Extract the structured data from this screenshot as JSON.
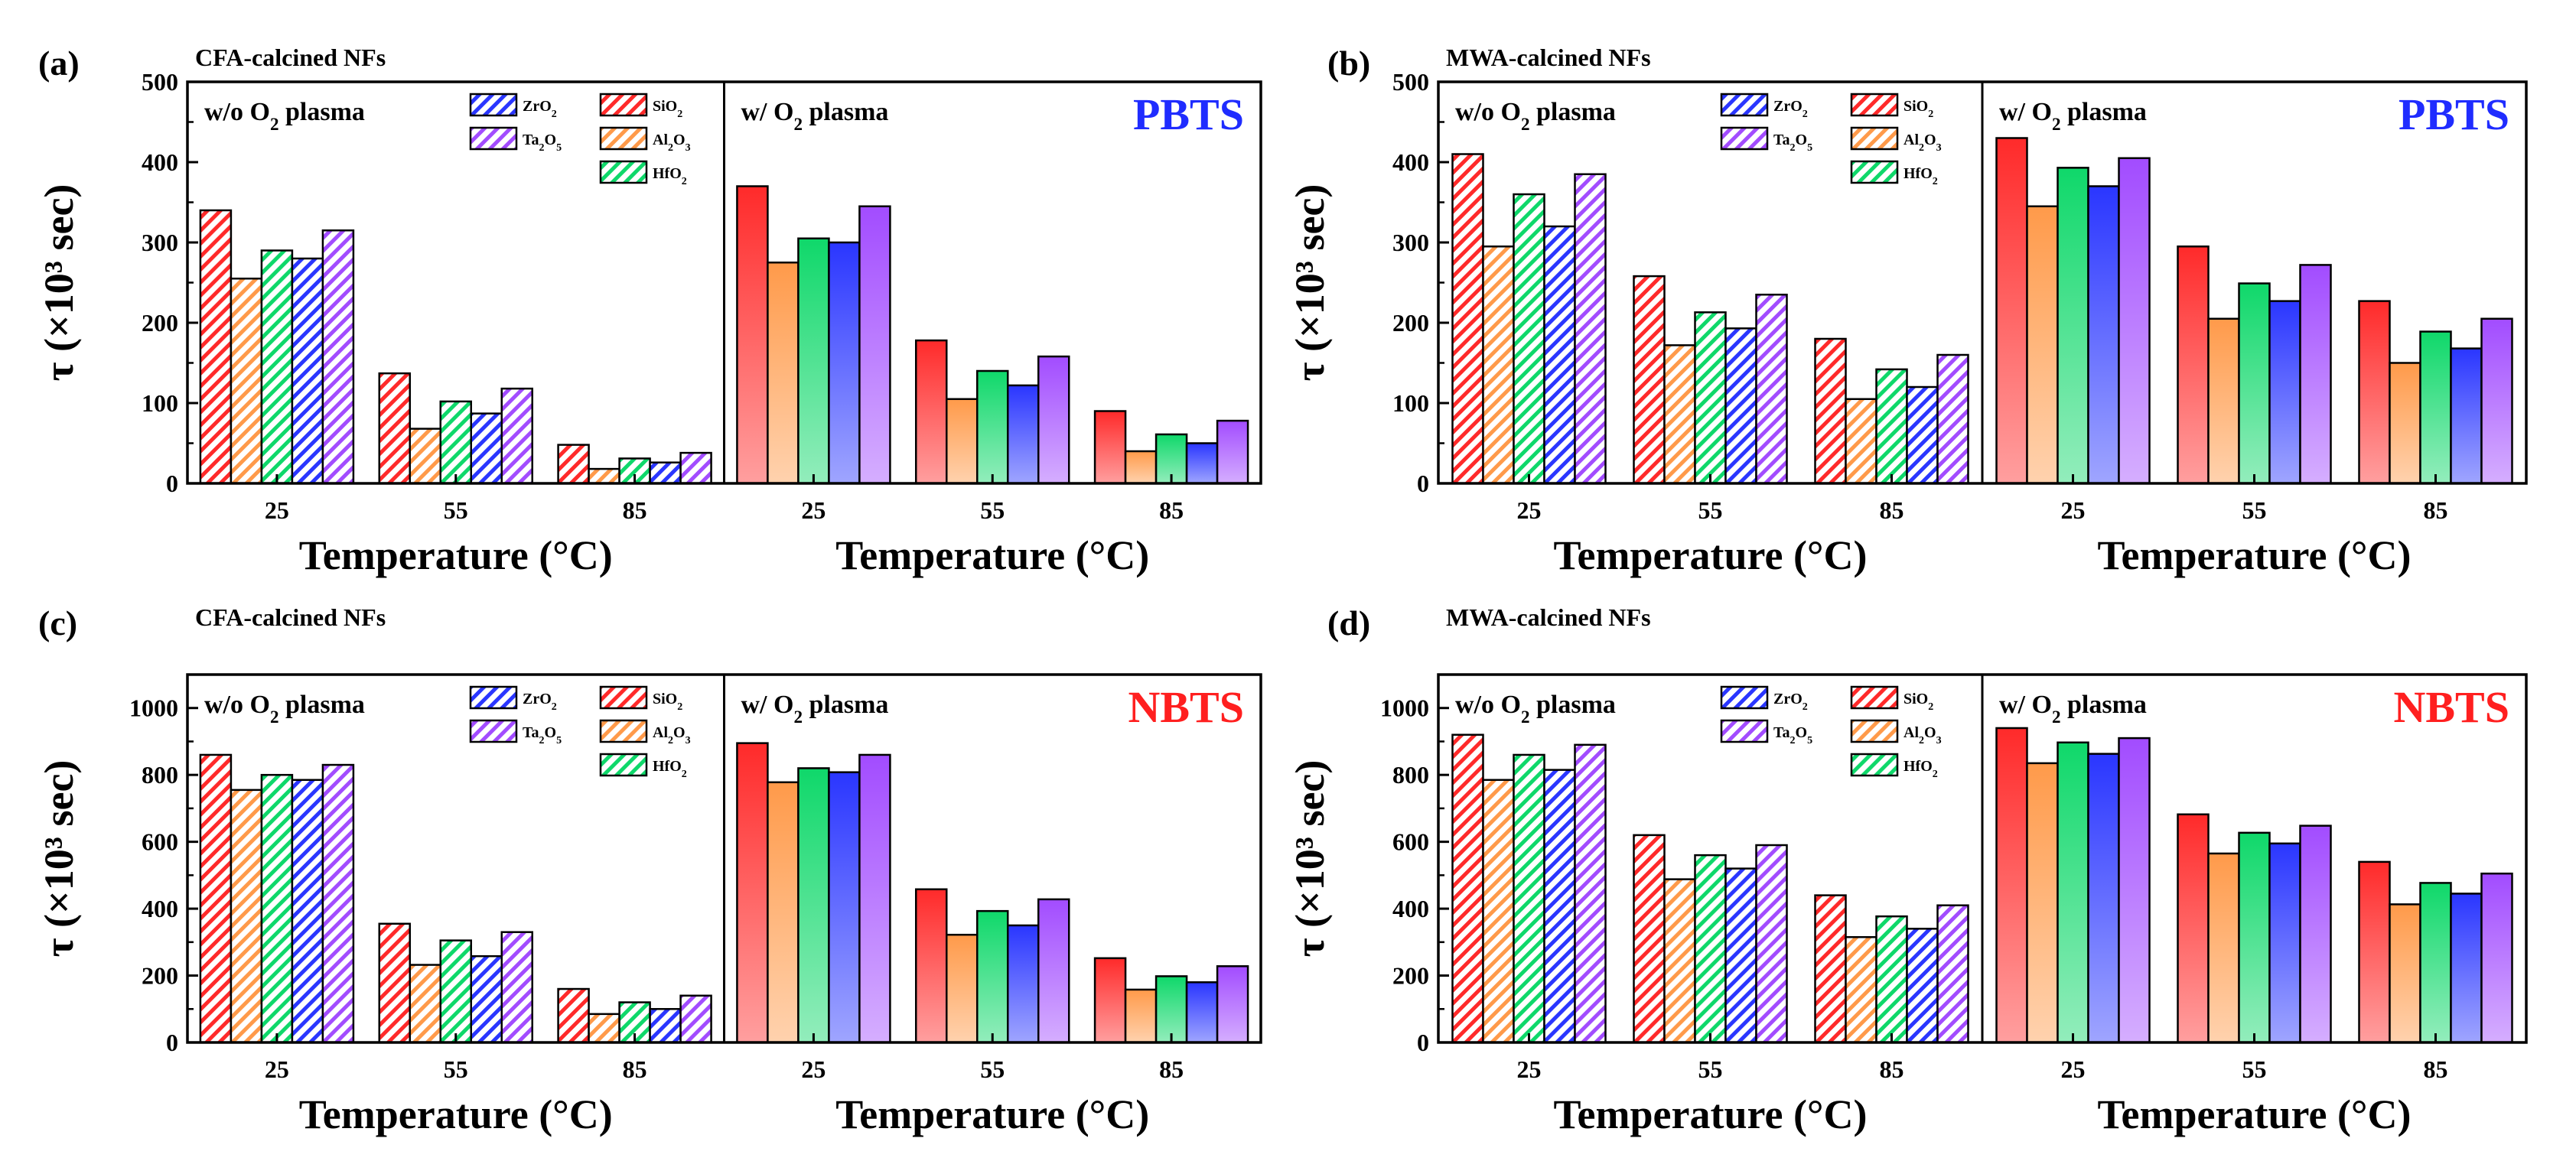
{
  "colors": {
    "SiO2": "#ff2a2a",
    "Al2O3": "#ff9a4a",
    "HfO2": "#0fd86a",
    "ZrO2": "#2a36ff",
    "Ta2O5": "#a24cff",
    "PBTS": "#1f2cff",
    "NBTS": "#ff1f1f",
    "axis": "#000000"
  },
  "legend": [
    {
      "key": "ZrO2",
      "base": "ZrO",
      "sub": "2"
    },
    {
      "key": "SiO2",
      "base": "SiO",
      "sub": "2"
    },
    {
      "key": "Ta2O5",
      "base": "Ta",
      "sub": "2",
      "base2": "O",
      "sub2": "5"
    },
    {
      "key": "Al2O3",
      "base": "Al",
      "sub": "2",
      "base2": "O",
      "sub2": "3"
    },
    {
      "key": "HfO2",
      "base": "HfO",
      "sub": "2"
    }
  ],
  "chart_data": [
    {
      "panel": "(a)",
      "type": "bar",
      "title": "CFA-calcined NFs",
      "tag": "PBTS",
      "xlabel": "Temperature (°C)",
      "ylabel": "τ (×10³ sec)",
      "ylim": [
        0,
        500
      ],
      "yticks": [
        0,
        100,
        200,
        300,
        400,
        500
      ],
      "categories": [
        "25",
        "55",
        "85"
      ],
      "groups": [
        {
          "condition": "w/o O2 plasma",
          "series": [
            {
              "name": "SiO2",
              "values": [
                340,
                137,
                48
              ]
            },
            {
              "name": "Al2O3",
              "values": [
                255,
                68,
                18
              ]
            },
            {
              "name": "HfO2",
              "values": [
                290,
                102,
                31
              ]
            },
            {
              "name": "ZrO2",
              "values": [
                280,
                87,
                26
              ]
            },
            {
              "name": "Ta2O5",
              "values": [
                315,
                118,
                38
              ]
            }
          ]
        },
        {
          "condition": "w/ O2 plasma",
          "series": [
            {
              "name": "SiO2",
              "values": [
                370,
                178,
                90
              ]
            },
            {
              "name": "Al2O3",
              "values": [
                275,
                105,
                40
              ]
            },
            {
              "name": "HfO2",
              "values": [
                305,
                140,
                61
              ]
            },
            {
              "name": "ZrO2",
              "values": [
                300,
                122,
                50
              ]
            },
            {
              "name": "Ta2O5",
              "values": [
                345,
                158,
                78
              ]
            }
          ]
        }
      ]
    },
    {
      "panel": "(b)",
      "type": "bar",
      "title": "MWA-calcined NFs",
      "tag": "PBTS",
      "xlabel": "Temperature (°C)",
      "ylabel": "τ (×10³ sec)",
      "ylim": [
        0,
        500
      ],
      "yticks": [
        0,
        100,
        200,
        300,
        400,
        500
      ],
      "categories": [
        "25",
        "55",
        "85"
      ],
      "groups": [
        {
          "condition": "w/o O2 plasma",
          "series": [
            {
              "name": "SiO2",
              "values": [
                410,
                258,
                180
              ]
            },
            {
              "name": "Al2O3",
              "values": [
                295,
                172,
                105
              ]
            },
            {
              "name": "HfO2",
              "values": [
                360,
                213,
                142
              ]
            },
            {
              "name": "ZrO2",
              "values": [
                320,
                193,
                120
              ]
            },
            {
              "name": "Ta2O5",
              "values": [
                385,
                235,
                160
              ]
            }
          ]
        },
        {
          "condition": "w/ O2 plasma",
          "series": [
            {
              "name": "SiO2",
              "values": [
                430,
                295,
                227
              ]
            },
            {
              "name": "Al2O3",
              "values": [
                345,
                205,
                150
              ]
            },
            {
              "name": "HfO2",
              "values": [
                393,
                249,
                189
              ]
            },
            {
              "name": "ZrO2",
              "values": [
                370,
                227,
                168
              ]
            },
            {
              "name": "Ta2O5",
              "values": [
                405,
                272,
                205
              ]
            }
          ]
        }
      ]
    },
    {
      "panel": "(c)",
      "type": "bar",
      "title": "CFA-calcined NFs",
      "tag": "NBTS",
      "xlabel": "Temperature (°C)",
      "ylabel": "τ (×10³ sec)",
      "ylim": [
        0,
        1100
      ],
      "yticks": [
        0,
        200,
        400,
        600,
        800,
        1000
      ],
      "categories": [
        "25",
        "55",
        "85"
      ],
      "groups": [
        {
          "condition": "w/o O2 plasma",
          "series": [
            {
              "name": "SiO2",
              "values": [
                860,
                355,
                160
              ]
            },
            {
              "name": "Al2O3",
              "values": [
                755,
                232,
                85
              ]
            },
            {
              "name": "HfO2",
              "values": [
                800,
                305,
                120
              ]
            },
            {
              "name": "ZrO2",
              "values": [
                785,
                258,
                100
              ]
            },
            {
              "name": "Ta2O5",
              "values": [
                830,
                330,
                140
              ]
            }
          ]
        },
        {
          "condition": "w/ O2 plasma",
          "series": [
            {
              "name": "SiO2",
              "values": [
                895,
                458,
                252
              ]
            },
            {
              "name": "Al2O3",
              "values": [
                778,
                322,
                158
              ]
            },
            {
              "name": "HfO2",
              "values": [
                820,
                393,
                198
              ]
            },
            {
              "name": "ZrO2",
              "values": [
                808,
                350,
                180
              ]
            },
            {
              "name": "Ta2O5",
              "values": [
                860,
                428,
                228
              ]
            }
          ]
        }
      ]
    },
    {
      "panel": "(d)",
      "type": "bar",
      "title": "MWA-calcined NFs",
      "tag": "NBTS",
      "xlabel": "Temperature (°C)",
      "ylabel": "τ (×10³ sec)",
      "ylim": [
        0,
        1100
      ],
      "yticks": [
        0,
        200,
        400,
        600,
        800,
        1000
      ],
      "categories": [
        "25",
        "55",
        "85"
      ],
      "groups": [
        {
          "condition": "w/o O2 plasma",
          "series": [
            {
              "name": "SiO2",
              "values": [
                920,
                620,
                440
              ]
            },
            {
              "name": "Al2O3",
              "values": [
                785,
                488,
                315
              ]
            },
            {
              "name": "HfO2",
              "values": [
                860,
                560,
                377
              ]
            },
            {
              "name": "ZrO2",
              "values": [
                815,
                520,
                340
              ]
            },
            {
              "name": "Ta2O5",
              "values": [
                890,
                590,
                410
              ]
            }
          ]
        },
        {
          "condition": "w/ O2 plasma",
          "series": [
            {
              "name": "SiO2",
              "values": [
                940,
                682,
                540
              ]
            },
            {
              "name": "Al2O3",
              "values": [
                835,
                565,
                413
              ]
            },
            {
              "name": "HfO2",
              "values": [
                897,
                627,
                477
              ]
            },
            {
              "name": "ZrO2",
              "values": [
                863,
                595,
                445
              ]
            },
            {
              "name": "Ta2O5",
              "values": [
                910,
                648,
                505
              ]
            }
          ]
        }
      ]
    }
  ]
}
